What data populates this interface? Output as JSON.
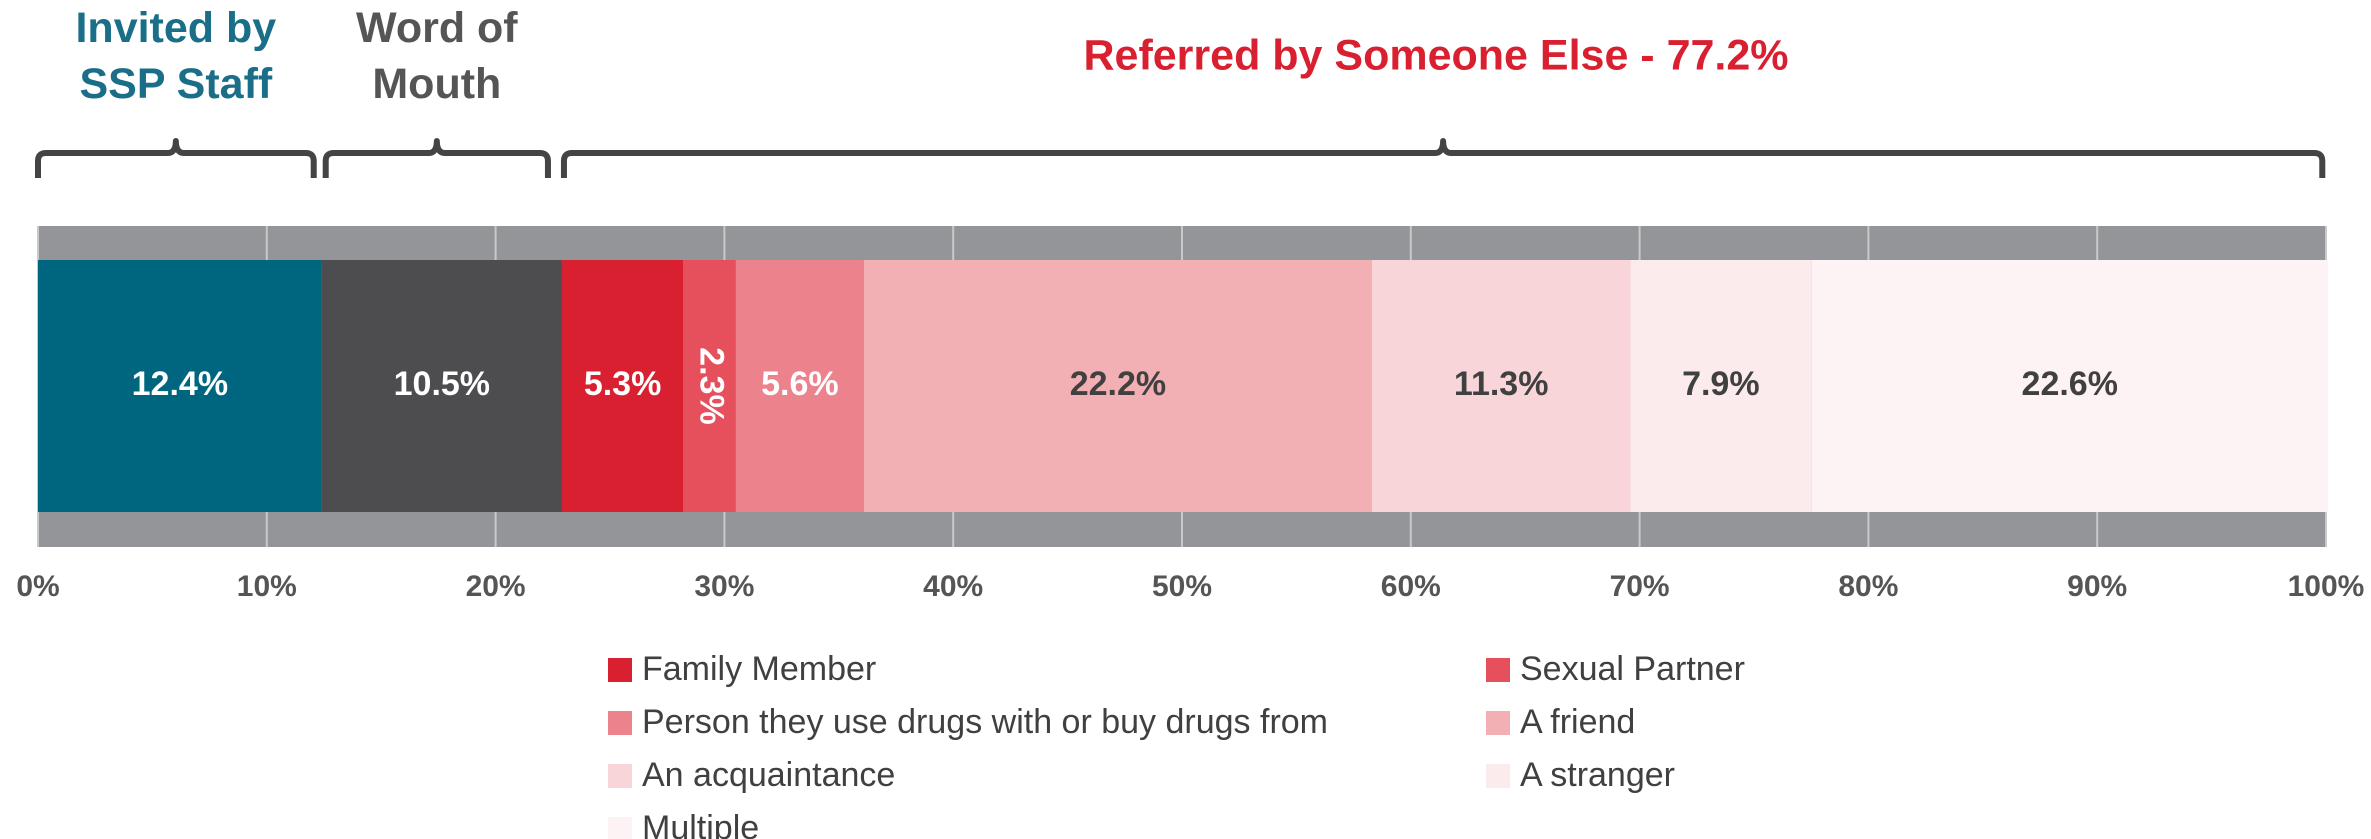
{
  "chart_data": {
    "type": "stacked_bar_horizontal",
    "group_label": "Referred by Someone Else - 77.2%",
    "xlim": [
      0,
      100
    ],
    "xticks": [
      {
        "value": 0,
        "label": "0%"
      },
      {
        "value": 10,
        "label": "10%"
      },
      {
        "value": 20,
        "label": "20%"
      },
      {
        "value": 30,
        "label": "30%"
      },
      {
        "value": 40,
        "label": "40%"
      },
      {
        "value": 50,
        "label": "50%"
      },
      {
        "value": 60,
        "label": "60%"
      },
      {
        "value": 70,
        "label": "70%"
      },
      {
        "value": 80,
        "label": "80%"
      },
      {
        "value": 90,
        "label": "90%"
      },
      {
        "value": 100,
        "label": "100%"
      }
    ],
    "grid": true,
    "series": [
      {
        "name": "Invited by SSP Staff",
        "color": "#006680",
        "values": [
          12.4
        ],
        "value_labels": [
          "12.4%"
        ]
      },
      {
        "name": "Word of Mouth",
        "color": "#4d4d4f",
        "values": [
          10.5
        ],
        "value_labels": [
          "10.5%"
        ]
      },
      {
        "name": "Family Member",
        "color": "#d92030",
        "values": [
          5.3
        ],
        "value_labels": [
          "5.3%"
        ]
      },
      {
        "name": "Sexual Partner",
        "color": "#e5505c",
        "values": [
          2.3
        ],
        "value_labels": [
          "2.3%"
        ]
      },
      {
        "name": "Person they use drugs with or buy drugs from",
        "color": "#ec838c",
        "values": [
          5.6
        ],
        "value_labels": [
          "5.6%"
        ]
      },
      {
        "name": "A friend",
        "color": "#f2b0b4",
        "values": [
          22.2
        ],
        "value_labels": [
          "22.2%"
        ]
      },
      {
        "name": "An acquaintance",
        "color": "#f8d5d8",
        "values": [
          11.3
        ],
        "value_labels": [
          "11.3%"
        ]
      },
      {
        "name": "A stranger",
        "color": "#fcebec",
        "values": [
          7.9
        ],
        "value_labels": [
          "7.9%"
        ]
      },
      {
        "name": "Multiple",
        "color": "#fdf3f4",
        "values": [
          22.6
        ],
        "value_labels": [
          "22.6%"
        ]
      }
    ]
  }
}
